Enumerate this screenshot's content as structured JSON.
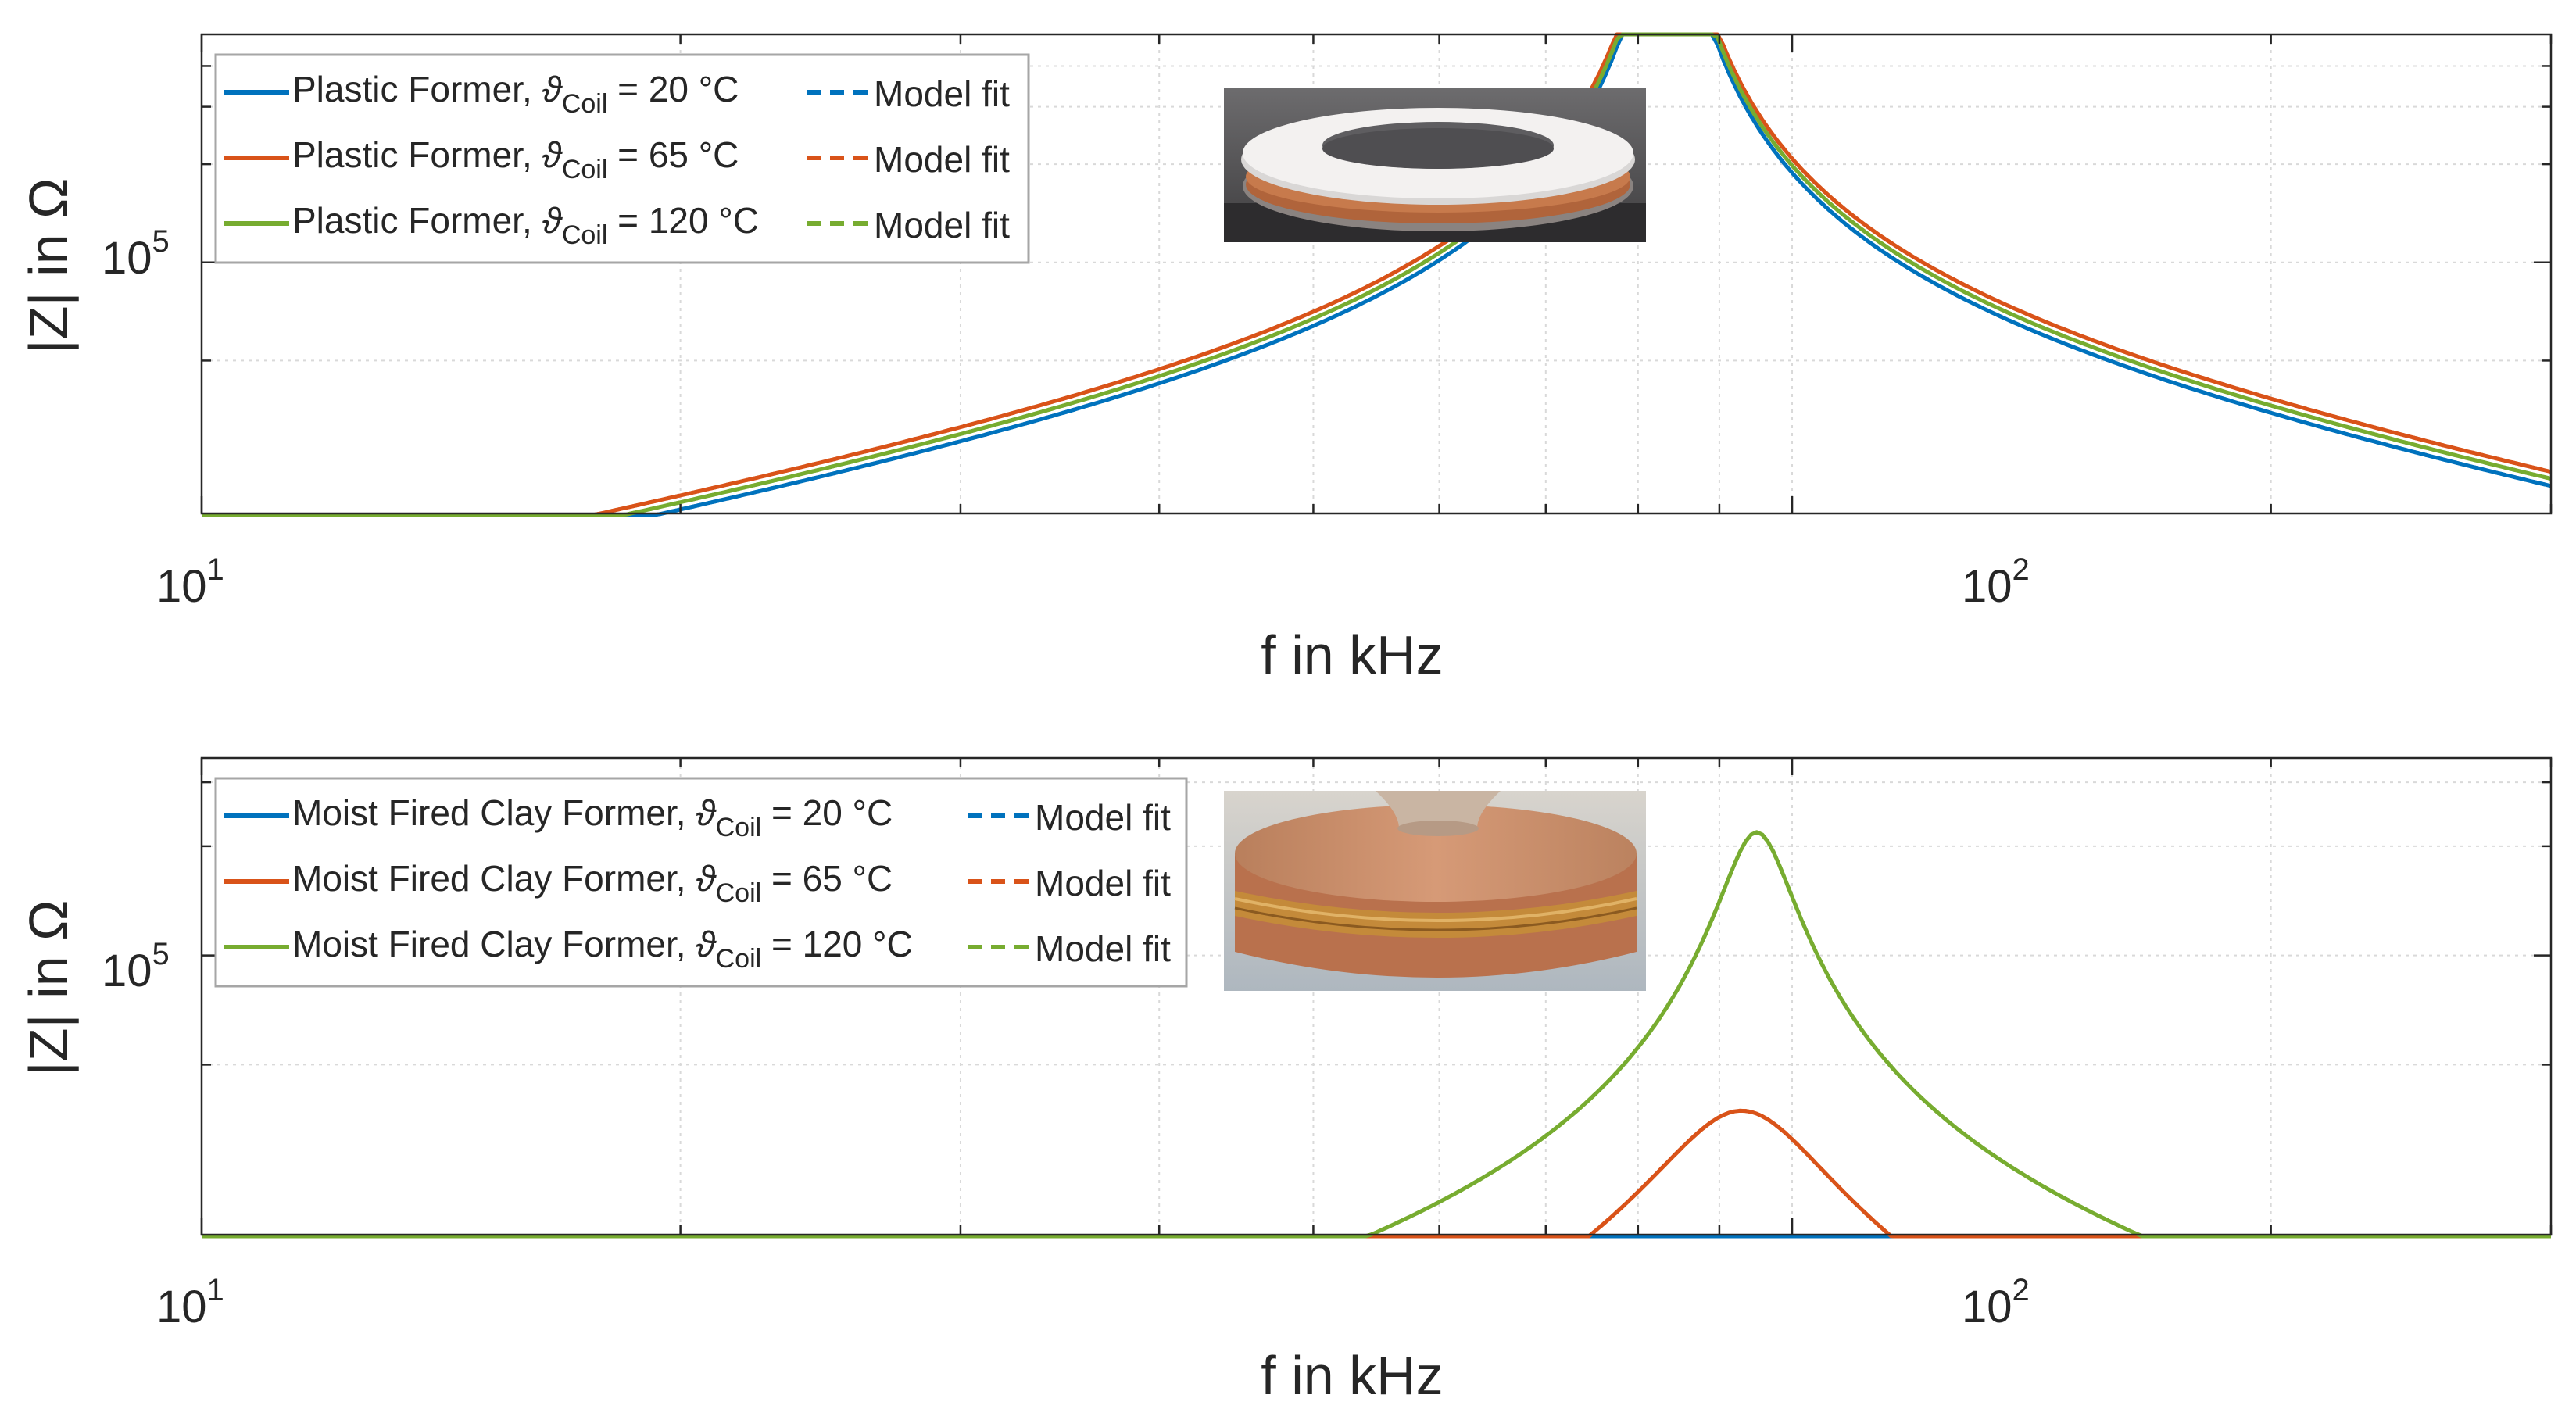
{
  "colors": {
    "blue": "#0072BD",
    "orange": "#D95319",
    "green": "#77AC30",
    "axis": "#262626",
    "grid": "#d9d9d9",
    "frame": "#a6a6a6"
  },
  "chart_data": [
    {
      "type": "line",
      "xscale": "log",
      "yscale": "log",
      "xlabel": "f in kHz",
      "ylabel": "|Z| in Ω",
      "xlim": [
        10,
        300
      ],
      "ylim": [
        17000,
        500000
      ],
      "xticks": [
        {
          "base": "10",
          "exp": "1"
        },
        {
          "base": "10",
          "exp": "2"
        }
      ],
      "yticks": [
        {
          "base": "10",
          "exp": "5"
        }
      ],
      "legend_entries": [
        {
          "prefix": "Plastic Former, ",
          "theta": "ϑ",
          "sub": "Coil",
          "suffix": " = 20 °C",
          "fit": "Model fit",
          "color": "#0072BD"
        },
        {
          "prefix": "Plastic Former, ",
          "theta": "ϑ",
          "sub": "Coil",
          "suffix": " = 65 °C",
          "fit": "Model fit",
          "color": "#D95319"
        },
        {
          "prefix": "Plastic Former, ",
          "theta": "ϑ",
          "sub": "Coil",
          "suffix": " = 120 °C",
          "fit": "Model fit",
          "color": "#77AC30"
        }
      ],
      "inset_photo": "plastic-former-coil-photo",
      "series": [
        {
          "name": "Plastic Former, ϑCoil = 20 °C",
          "color": "#0072BD",
          "style": "solid",
          "f0": 83.5,
          "q": 38,
          "k": 1800
        },
        {
          "name": "Model fit (20 °C)",
          "color": "#0072BD",
          "style": "dashed",
          "f0": 83.5,
          "q": 38,
          "k": 1800
        },
        {
          "name": "Plastic Former, ϑCoil = 65 °C",
          "color": "#D95319",
          "style": "solid",
          "f0": 83.5,
          "q": 42,
          "k": 1800
        },
        {
          "name": "Model fit (65 °C)",
          "color": "#D95319",
          "style": "dashed",
          "f0": 83.5,
          "q": 42,
          "k": 1800
        },
        {
          "name": "Plastic Former, ϑCoil = 120 °C",
          "color": "#77AC30",
          "style": "solid",
          "f0": 83.5,
          "q": 40,
          "k": 1800
        },
        {
          "name": "Model fit (120 °C)",
          "color": "#77AC30",
          "style": "dashed",
          "f0": 83.5,
          "q": 40,
          "k": 1800
        }
      ]
    },
    {
      "type": "line",
      "xscale": "log",
      "yscale": "log",
      "xlabel": "f in kHz",
      "ylabel": "|Z| in Ω",
      "xlim": [
        10,
        300
      ],
      "ylim": [
        17000,
        350000
      ],
      "xticks": [
        {
          "base": "10",
          "exp": "1"
        },
        {
          "base": "10",
          "exp": "2"
        }
      ],
      "yticks": [
        {
          "base": "10",
          "exp": "5"
        }
      ],
      "legend_entries": [
        {
          "prefix": "Moist Fired Clay Former, ",
          "theta": "ϑ",
          "sub": "Coil",
          "suffix": " = 20 °C",
          "fit": "Model fit",
          "color": "#0072BD"
        },
        {
          "prefix": "Moist Fired Clay Former, ",
          "theta": "ϑ",
          "sub": "Coil",
          "suffix": " = 65 °C",
          "fit": "Model fit",
          "color": "#D95319"
        },
        {
          "prefix": "Moist Fired Clay Former, ",
          "theta": "ϑ",
          "sub": "Coil",
          "suffix": " = 120 °C",
          "fit": "Model fit",
          "color": "#77AC30"
        }
      ],
      "inset_photo": "clay-former-coil-photo",
      "series": [
        {
          "name": "Moist Fired Clay Former, ϑCoil = 20 °C",
          "color": "#0072BD",
          "style": "solid",
          "f0": 80,
          "q": 1.7,
          "k": 1800,
          "ha": 0.0074
        },
        {
          "name": "Model fit (20 °C)",
          "color": "#0072BD",
          "style": "dashed",
          "f0": 80,
          "q": 1.75,
          "k": 1800,
          "ha": 0.0
        },
        {
          "name": "Moist Fired Clay Former, ϑCoil = 65 °C",
          "color": "#D95319",
          "style": "solid",
          "f0": 93,
          "q": 4.5,
          "k": 1800
        },
        {
          "name": "Model fit (65 °C)",
          "color": "#D95319",
          "style": "dashed",
          "f0": 93,
          "q": 4.5,
          "k": 1800
        },
        {
          "name": "Moist Fired Clay Former, ϑCoil = 120 °C",
          "color": "#77AC30",
          "style": "solid",
          "f0": 95,
          "q": 11,
          "k": 1800
        },
        {
          "name": "Model fit (120 °C)",
          "color": "#77AC30",
          "style": "dashed",
          "f0": 95,
          "q": 11,
          "k": 1800
        }
      ]
    }
  ]
}
